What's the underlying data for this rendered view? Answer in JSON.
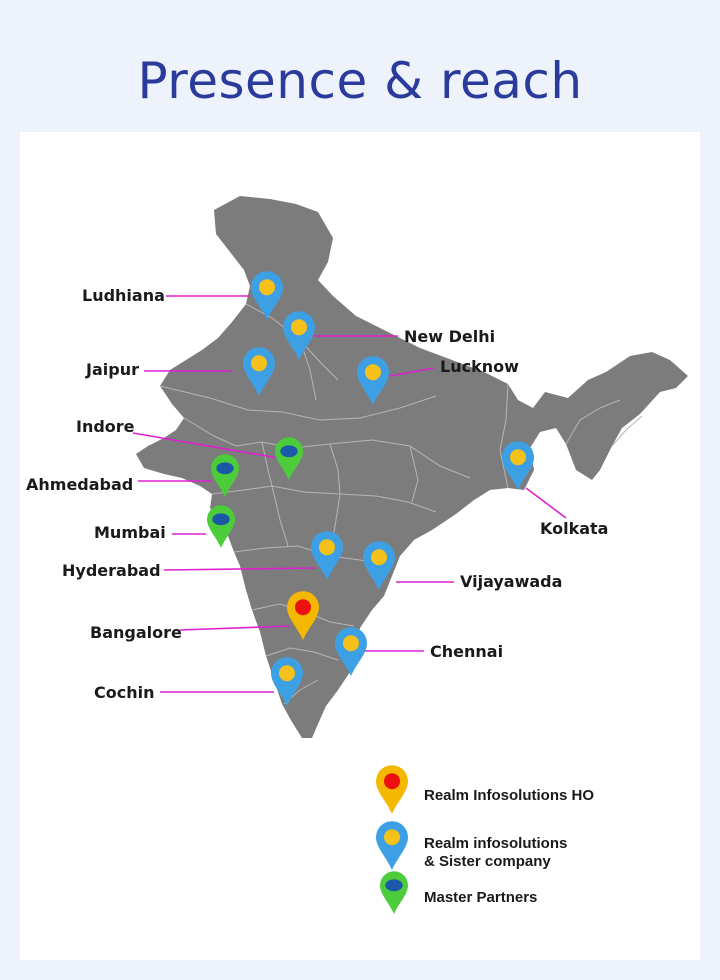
{
  "page": {
    "title": "Presence & reach"
  },
  "map": {
    "region": "India",
    "land_color": "#7c7c7c",
    "border_color": "#b5b5b5",
    "leader_line_color": "#e020d0"
  },
  "markers": [
    {
      "id": "ludhiana",
      "label": "Ludhiana",
      "type": "sister"
    },
    {
      "id": "new-delhi",
      "label": "New Delhi",
      "type": "sister"
    },
    {
      "id": "jaipur",
      "label": "Jaipur",
      "type": "sister"
    },
    {
      "id": "lucknow",
      "label": "Lucknow",
      "type": "sister"
    },
    {
      "id": "indore",
      "label": "Indore",
      "type": "partner"
    },
    {
      "id": "ahmedabad",
      "label": "Ahmedabad",
      "type": "partner"
    },
    {
      "id": "kolkata",
      "label": "Kolkata",
      "type": "sister"
    },
    {
      "id": "mumbai",
      "label": "Mumbai",
      "type": "partner"
    },
    {
      "id": "hyderabad",
      "label": "Hyderabad",
      "type": "sister"
    },
    {
      "id": "vijayawada",
      "label": "Vijayawada",
      "type": "sister"
    },
    {
      "id": "bangalore",
      "label": "Bangalore",
      "type": "ho"
    },
    {
      "id": "chennai",
      "label": "Chennai",
      "type": "sister"
    },
    {
      "id": "cochin",
      "label": "Cochin",
      "type": "sister"
    }
  ],
  "marker_types": {
    "ho": {
      "pin": "#f5b800",
      "dot": "#ee1111"
    },
    "sister": {
      "pin": "#3ea0e4",
      "dot": "#f5c11a"
    },
    "partner": {
      "pin": "#4ccc3a",
      "dot": "#1c58a8"
    }
  },
  "legend": {
    "items": [
      {
        "type": "ho",
        "label_lines": [
          "Realm Infosolutions HO"
        ]
      },
      {
        "type": "sister",
        "label_lines": [
          "Realm infosolutions",
          "& Sister company"
        ]
      },
      {
        "type": "partner",
        "label_lines": [
          "Master Partners"
        ]
      }
    ]
  }
}
